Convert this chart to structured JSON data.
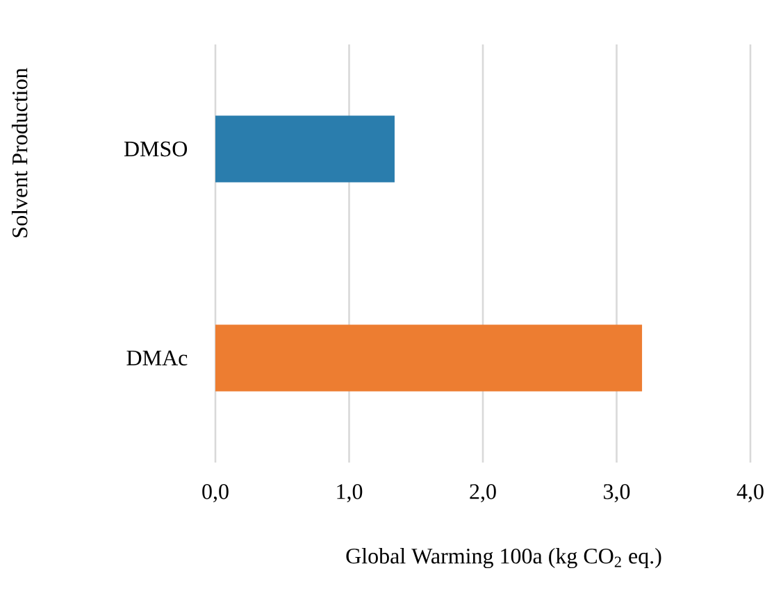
{
  "chart_data": {
    "type": "bar",
    "orientation": "horizontal",
    "categories": [
      "DMSO",
      "DMAc"
    ],
    "values": [
      1.34,
      3.19
    ],
    "colors": [
      "#2a7dad",
      "#ed7d31"
    ],
    "xlabel": "Global Warming 100a (kg CO$_{2}$ eq.)",
    "ylabel": "Solvent Production",
    "xlim": [
      0,
      4
    ],
    "xticks": [
      {
        "value": 0,
        "label": "0,0"
      },
      {
        "value": 1,
        "label": "1,0"
      },
      {
        "value": 2,
        "label": "2,0"
      },
      {
        "value": 3,
        "label": "3,0"
      },
      {
        "value": 4,
        "label": "4,0"
      }
    ],
    "grid": "x"
  }
}
